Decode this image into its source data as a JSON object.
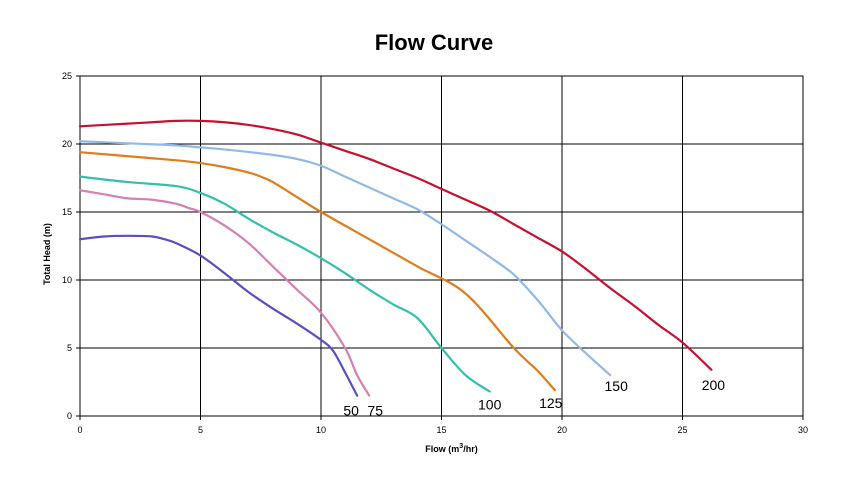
{
  "chart_data": {
    "type": "line",
    "title": "Flow Curve",
    "xlabel": "Flow (m3/hr)",
    "xlabel_parts": {
      "prefix": "Flow  (m",
      "sup": "3",
      "suffix": "/hr)"
    },
    "ylabel": "Total Head (m)",
    "xlim": [
      0,
      30
    ],
    "ylim": [
      0,
      25
    ],
    "xticks": [
      0,
      5,
      10,
      15,
      20,
      25,
      30
    ],
    "yticks": [
      0,
      5,
      10,
      15,
      20,
      25
    ],
    "grid": true,
    "legend": "none",
    "series": [
      {
        "name": "50",
        "color": "#5b4fc0",
        "x": [
          0,
          1,
          2,
          3,
          3.5,
          4,
          5,
          6,
          7,
          8,
          9,
          10,
          10.5,
          11,
          11.5
        ],
        "y": [
          13,
          13.2,
          13.25,
          13.2,
          13,
          12.7,
          11.8,
          10.5,
          9.1,
          7.9,
          6.8,
          5.6,
          4.8,
          3.2,
          1.5
        ]
      },
      {
        "name": "75",
        "color": "#d77fb1",
        "x": [
          0,
          1,
          2,
          3,
          4,
          4.5,
          5,
          6,
          7,
          8,
          9,
          10,
          11,
          11.5,
          12
        ],
        "y": [
          16.6,
          16.3,
          16,
          15.9,
          15.6,
          15.3,
          15,
          14,
          12.7,
          11,
          9.3,
          7.6,
          5,
          3,
          1.5
        ]
      },
      {
        "name": "100",
        "color": "#33bfae",
        "x": [
          0,
          2,
          4,
          5,
          6,
          7,
          8,
          9,
          10,
          11,
          12,
          13,
          14,
          15,
          16,
          17
        ],
        "y": [
          17.6,
          17.2,
          16.9,
          16.4,
          15.6,
          14.5,
          13.5,
          12.6,
          11.6,
          10.5,
          9.3,
          8.2,
          7.2,
          5,
          3,
          1.8
        ]
      },
      {
        "name": "125",
        "color": "#e07c1a",
        "x": [
          0,
          2,
          4,
          5,
          6,
          7,
          7.5,
          8,
          9,
          10,
          12,
          14,
          16,
          18,
          19,
          19.7
        ],
        "y": [
          19.4,
          19.1,
          18.8,
          18.6,
          18.3,
          17.9,
          17.6,
          17.2,
          16.1,
          15,
          13,
          11,
          9,
          5,
          3.3,
          1.9
        ]
      },
      {
        "name": "150",
        "color": "#8fb9ea",
        "x": [
          0,
          2,
          4,
          5,
          6,
          8,
          9,
          10,
          11,
          12,
          13,
          14,
          15,
          16,
          17,
          18,
          19,
          20,
          21,
          22
        ],
        "y": [
          20.2,
          20.05,
          19.9,
          19.75,
          19.6,
          19.2,
          18.9,
          18.4,
          17.6,
          16.8,
          16,
          15.2,
          14.1,
          12.9,
          11.7,
          10.4,
          8.5,
          6.3,
          4.6,
          3
        ]
      },
      {
        "name": "200",
        "color": "#c8102e",
        "x": [
          0,
          1,
          2,
          3,
          4,
          5,
          6,
          7,
          8,
          9,
          10,
          11,
          12,
          13,
          14,
          15,
          16,
          17,
          18,
          19,
          20,
          21,
          22,
          23,
          24,
          25,
          26.2
        ],
        "y": [
          21.3,
          21.4,
          21.5,
          21.6,
          21.7,
          21.7,
          21.6,
          21.4,
          21.1,
          20.7,
          20.1,
          19.5,
          18.9,
          18.2,
          17.5,
          16.7,
          15.9,
          15.1,
          14.1,
          13.1,
          12.1,
          10.8,
          9.4,
          8.1,
          6.7,
          5.4,
          3.4
        ]
      }
    ]
  }
}
